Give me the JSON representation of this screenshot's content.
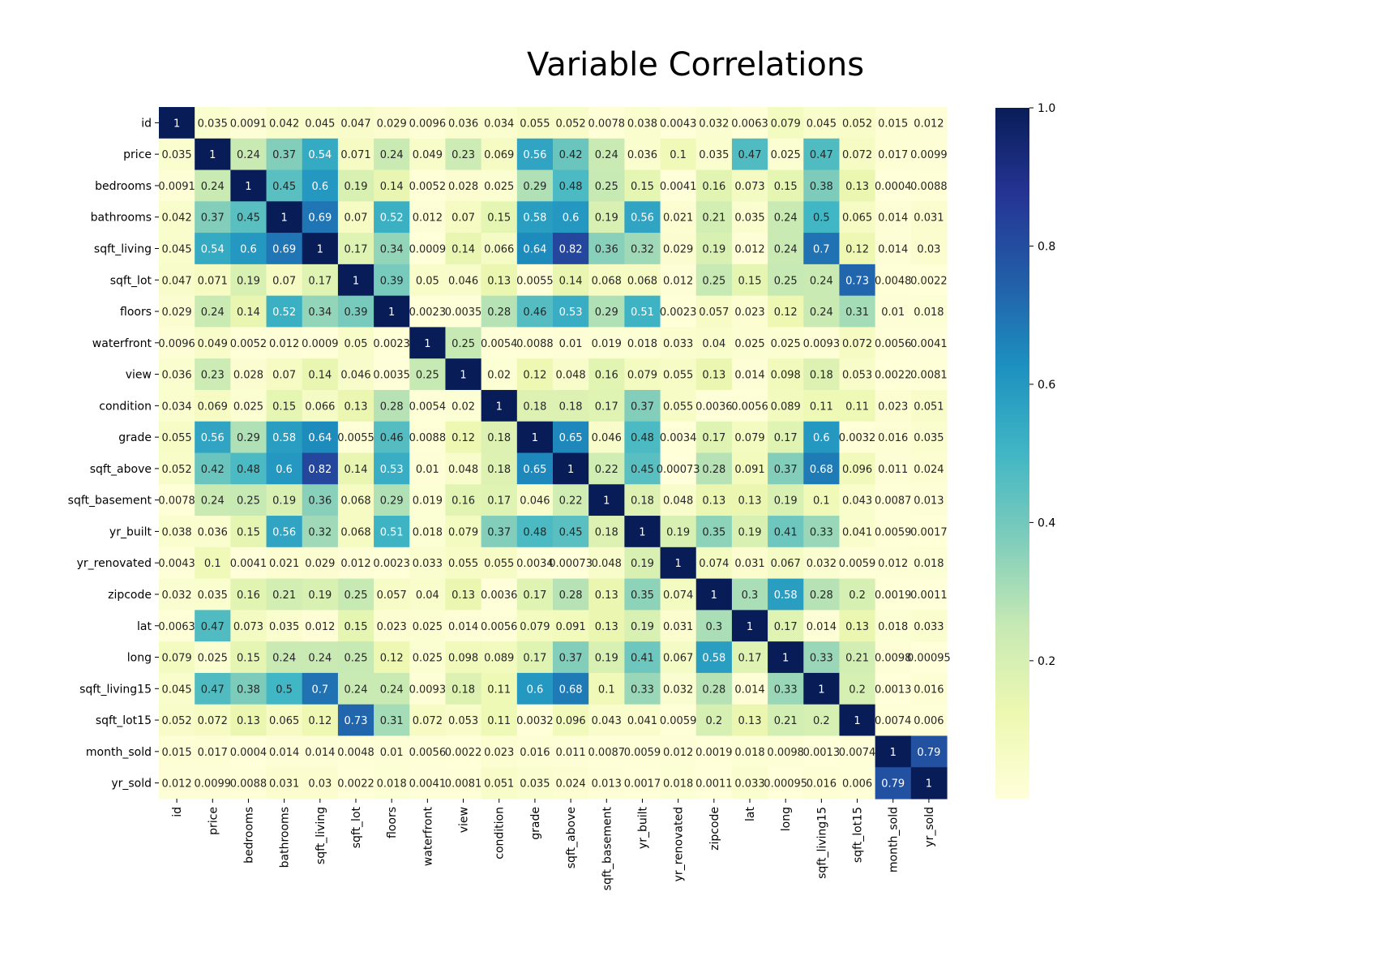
{
  "chart_data": {
    "type": "heatmap",
    "title": "Variable Correlations",
    "variables": [
      "id",
      "price",
      "bedrooms",
      "bathrooms",
      "sqft_living",
      "sqft_lot",
      "floors",
      "waterfront",
      "view",
      "condition",
      "grade",
      "sqft_above",
      "sqft_basement",
      "yr_built",
      "yr_renovated",
      "zipcode",
      "lat",
      "long",
      "sqft_living15",
      "sqft_lot15",
      "month_sold",
      "yr_sold"
    ],
    "values": [
      [
        1,
        0.035,
        0.0091,
        0.042,
        0.045,
        0.047,
        0.029,
        0.0096,
        0.036,
        0.034,
        0.055,
        0.052,
        0.0078,
        0.038,
        0.0043,
        0.032,
        0.0063,
        0.079,
        0.045,
        0.052,
        0.015,
        0.012
      ],
      [
        0.035,
        1,
        0.24,
        0.37,
        0.54,
        0.071,
        0.24,
        0.049,
        0.23,
        0.069,
        0.56,
        0.42,
        0.24,
        0.036,
        0.1,
        0.035,
        0.47,
        0.025,
        0.47,
        0.072,
        0.017,
        0.0099
      ],
      [
        0.0091,
        0.24,
        1,
        0.45,
        0.6,
        0.19,
        0.14,
        0.0052,
        0.028,
        0.025,
        0.29,
        0.48,
        0.25,
        0.15,
        0.0041,
        0.16,
        0.073,
        0.15,
        0.38,
        0.13,
        0.0004,
        0.0088
      ],
      [
        0.042,
        0.37,
        0.45,
        1,
        0.69,
        0.07,
        0.52,
        0.012,
        0.07,
        0.15,
        0.58,
        0.6,
        0.19,
        0.56,
        0.021,
        0.21,
        0.035,
        0.24,
        0.5,
        0.065,
        0.014,
        0.031
      ],
      [
        0.045,
        0.54,
        0.6,
        0.69,
        1,
        0.17,
        0.34,
        0.0009,
        0.14,
        0.066,
        0.64,
        0.82,
        0.36,
        0.32,
        0.029,
        0.19,
        0.012,
        0.24,
        0.7,
        0.12,
        0.014,
        0.03
      ],
      [
        0.047,
        0.071,
        0.19,
        0.07,
        0.17,
        1,
        0.39,
        0.05,
        0.046,
        0.13,
        0.0055,
        0.14,
        0.068,
        0.068,
        0.012,
        0.25,
        0.15,
        0.25,
        0.24,
        0.73,
        0.0048,
        0.0022
      ],
      [
        0.029,
        0.24,
        0.14,
        0.52,
        0.34,
        0.39,
        1,
        0.0023,
        0.0035,
        0.28,
        0.46,
        0.53,
        0.29,
        0.51,
        0.0023,
        0.057,
        0.023,
        0.12,
        0.24,
        0.31,
        0.01,
        0.018
      ],
      [
        0.0096,
        0.049,
        0.0052,
        0.012,
        0.0009,
        0.05,
        0.0023,
        1,
        0.25,
        0.0054,
        0.0088,
        0.01,
        0.019,
        0.018,
        0.033,
        0.04,
        0.025,
        0.025,
        0.0093,
        0.072,
        0.0056,
        0.0041
      ],
      [
        0.036,
        0.23,
        0.028,
        0.07,
        0.14,
        0.046,
        0.0035,
        0.25,
        1,
        0.02,
        0.12,
        0.048,
        0.16,
        0.079,
        0.055,
        0.13,
        0.014,
        0.098,
        0.18,
        0.053,
        0.0022,
        0.0081
      ],
      [
        0.034,
        0.069,
        0.025,
        0.15,
        0.066,
        0.13,
        0.28,
        0.0054,
        0.02,
        1,
        0.18,
        0.18,
        0.17,
        0.37,
        0.055,
        0.0036,
        0.0056,
        0.089,
        0.11,
        0.11,
        0.023,
        0.051
      ],
      [
        0.055,
        0.56,
        0.29,
        0.58,
        0.64,
        0.0055,
        0.46,
        0.0088,
        0.12,
        0.18,
        1,
        0.65,
        0.046,
        0.48,
        0.0034,
        0.17,
        0.079,
        0.17,
        0.6,
        0.0032,
        0.016,
        0.035
      ],
      [
        0.052,
        0.42,
        0.48,
        0.6,
        0.82,
        0.14,
        0.53,
        0.01,
        0.048,
        0.18,
        0.65,
        1,
        0.22,
        0.45,
        0.00073,
        0.28,
        0.091,
        0.37,
        0.68,
        0.096,
        0.011,
        0.024
      ],
      [
        0.0078,
        0.24,
        0.25,
        0.19,
        0.36,
        0.068,
        0.29,
        0.019,
        0.16,
        0.17,
        0.046,
        0.22,
        1,
        0.18,
        0.048,
        0.13,
        0.13,
        0.19,
        0.1,
        0.043,
        0.0087,
        0.013
      ],
      [
        0.038,
        0.036,
        0.15,
        0.56,
        0.32,
        0.068,
        0.51,
        0.018,
        0.079,
        0.37,
        0.48,
        0.45,
        0.18,
        1,
        0.19,
        0.35,
        0.19,
        0.41,
        0.33,
        0.041,
        0.0059,
        0.0017
      ],
      [
        0.0043,
        0.1,
        0.0041,
        0.021,
        0.029,
        0.012,
        0.0023,
        0.033,
        0.055,
        0.055,
        0.0034,
        0.00073,
        0.048,
        0.19,
        1,
        0.074,
        0.031,
        0.067,
        0.032,
        0.0059,
        0.012,
        0.018
      ],
      [
        0.032,
        0.035,
        0.16,
        0.21,
        0.19,
        0.25,
        0.057,
        0.04,
        0.13,
        0.0036,
        0.17,
        0.28,
        0.13,
        0.35,
        0.074,
        1,
        0.3,
        0.58,
        0.28,
        0.2,
        0.0019,
        0.0011
      ],
      [
        0.0063,
        0.47,
        0.073,
        0.035,
        0.012,
        0.15,
        0.023,
        0.025,
        0.014,
        0.0056,
        0.079,
        0.091,
        0.13,
        0.19,
        0.031,
        0.3,
        1,
        0.17,
        0.014,
        0.13,
        0.018,
        0.033
      ],
      [
        0.079,
        0.025,
        0.15,
        0.24,
        0.24,
        0.25,
        0.12,
        0.025,
        0.098,
        0.089,
        0.17,
        0.37,
        0.19,
        0.41,
        0.067,
        0.58,
        0.17,
        1,
        0.33,
        0.21,
        0.0098,
        0.00095
      ],
      [
        0.045,
        0.47,
        0.38,
        0.5,
        0.7,
        0.24,
        0.24,
        0.0093,
        0.18,
        0.11,
        0.6,
        0.68,
        0.1,
        0.33,
        0.032,
        0.28,
        0.014,
        0.33,
        1,
        0.2,
        0.0013,
        0.016
      ],
      [
        0.052,
        0.072,
        0.13,
        0.065,
        0.12,
        0.73,
        0.31,
        0.072,
        0.053,
        0.11,
        0.0032,
        0.096,
        0.043,
        0.041,
        0.0059,
        0.2,
        0.13,
        0.21,
        0.2,
        1,
        0.0074,
        0.006
      ],
      [
        0.015,
        0.017,
        0.0004,
        0.014,
        0.014,
        0.0048,
        0.01,
        0.0056,
        0.0022,
        0.023,
        0.016,
        0.011,
        0.0087,
        0.0059,
        0.012,
        0.0019,
        0.018,
        0.0098,
        0.0013,
        0.0074,
        1,
        0.79
      ],
      [
        0.012,
        0.0099,
        0.0088,
        0.031,
        0.03,
        0.0022,
        0.018,
        0.0041,
        0.0081,
        0.051,
        0.035,
        0.024,
        0.013,
        0.0017,
        0.018,
        0.0011,
        0.033,
        0.00095,
        0.016,
        0.006,
        0.79,
        1
      ]
    ],
    "colormap": "YlGnBu",
    "colorbar": {
      "min": 0,
      "max": 1,
      "ticks": [
        "0.2",
        "0.4",
        "0.6",
        "0.8",
        "1.0"
      ]
    }
  }
}
